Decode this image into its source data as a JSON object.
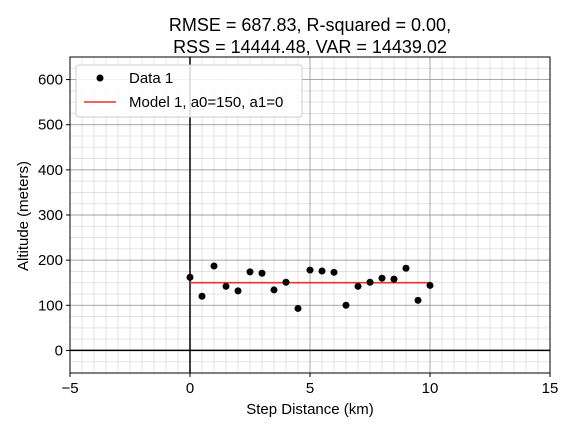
{
  "chart_data": {
    "type": "scatter",
    "title_lines": [
      "RMSE = 687.83, R-squared = 0.00,",
      "RSS = 14444.48, VAR = 14439.02"
    ],
    "xlabel": "Step Distance (km)",
    "ylabel": "Altitude (meters)",
    "xlim": [
      -5,
      15
    ],
    "ylim": [
      -50,
      650
    ],
    "xticks": [
      -5,
      0,
      5,
      10,
      15
    ],
    "yticks": [
      0,
      100,
      200,
      300,
      400,
      500,
      600
    ],
    "x_minor_step": 0.5,
    "y_minor_step": 25,
    "grid": true,
    "legend_position": "upper-left",
    "series": [
      {
        "name": "Data 1",
        "kind": "scatter",
        "color": "#000000",
        "x": [
          0,
          0.5,
          1,
          1.5,
          2,
          2.5,
          3,
          3.5,
          4,
          4.5,
          5,
          5.5,
          6,
          6.5,
          7,
          7.5,
          8,
          8.5,
          9,
          9.5,
          10
        ],
        "y": [
          162,
          120,
          187,
          142,
          132,
          174,
          171,
          134,
          151,
          93,
          178,
          176,
          173,
          100,
          142,
          151,
          160,
          158,
          182,
          111,
          144
        ]
      },
      {
        "name": "Model 1, a0=150, a1=0",
        "kind": "line",
        "color": "#e8322b",
        "x": [
          0,
          10
        ],
        "y": [
          150,
          150
        ]
      }
    ]
  }
}
